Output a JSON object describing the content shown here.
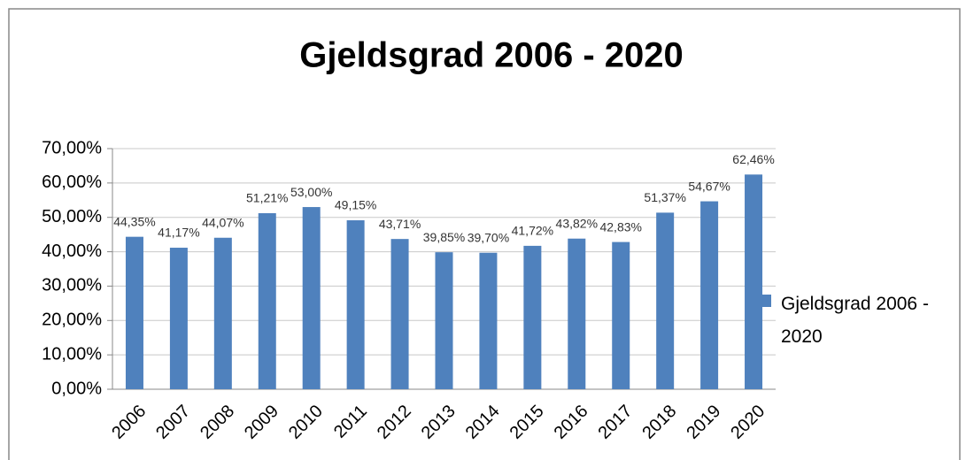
{
  "chart_data": {
    "type": "bar",
    "title": "Gjeldsgrad 2006 - 2020",
    "categories": [
      "2006",
      "2007",
      "2008",
      "2009",
      "2010",
      "2011",
      "2012",
      "2013",
      "2014",
      "2015",
      "2016",
      "2017",
      "2018",
      "2019",
      "2020"
    ],
    "series": [
      {
        "name": "Gjeldsgrad 2006 - 2020",
        "color": "#4f81bd",
        "values": [
          44.35,
          41.17,
          44.07,
          51.21,
          53.0,
          49.15,
          43.71,
          39.85,
          39.7,
          41.72,
          43.82,
          42.83,
          51.37,
          54.67,
          62.46
        ],
        "value_labels": [
          "44,35%",
          "41,17%",
          "44,07%",
          "51,21%",
          "53,00%",
          "49,15%",
          "43,71%",
          "39,85%",
          "39,70%",
          "41,72%",
          "43,82%",
          "42,83%",
          "51,37%",
          "54,67%",
          "62,46%"
        ]
      }
    ],
    "ylim": [
      0,
      70
    ],
    "yticks": [
      {
        "value": 0,
        "label": "0,00%"
      },
      {
        "value": 10,
        "label": "10,00%"
      },
      {
        "value": 20,
        "label": "20,00%"
      },
      {
        "value": 30,
        "label": "30,00%"
      },
      {
        "value": 40,
        "label": "40,00%"
      },
      {
        "value": 50,
        "label": "50,00%"
      },
      {
        "value": 60,
        "label": "60,00%"
      },
      {
        "value": 70,
        "label": "70,00%"
      }
    ],
    "grid": true,
    "legend": "right"
  }
}
